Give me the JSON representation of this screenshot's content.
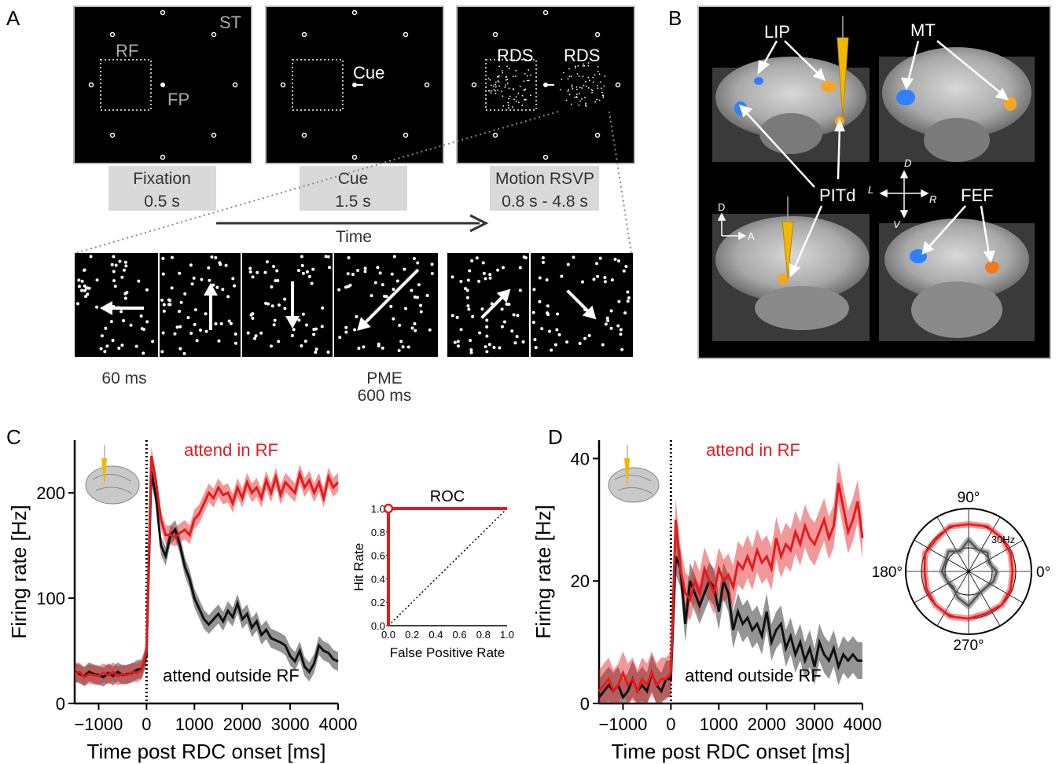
{
  "panel_letters": {
    "a": "A",
    "b": "B",
    "c": "C",
    "d": "D"
  },
  "panel_a": {
    "screen_labels": {
      "st": "ST",
      "rf": "RF",
      "fp": "FP",
      "cue": "Cue",
      "rds_left": "RDS",
      "rds_right": "RDS"
    },
    "stages": [
      {
        "name": "Fixation",
        "duration": "0.5 s"
      },
      {
        "name": "Cue",
        "duration": "1.5 s"
      },
      {
        "name": "Motion RSVP",
        "duration": "0.8 s - 4.8 s"
      }
    ],
    "time_label": "Time",
    "frame_duration": "60 ms",
    "pme_label": "PME",
    "pme_duration": "600 ms",
    "motion_directions_deg": [
      180,
      90,
      270,
      225,
      45,
      315
    ]
  },
  "panel_b": {
    "labels": {
      "lip": "LIP",
      "mt": "MT",
      "pitd": "PITd",
      "fef": "FEF"
    },
    "orient_coronal": {
      "d": "D",
      "v": "V",
      "l": "L",
      "r": "R"
    },
    "orient_sagittal": {
      "d": "D",
      "a": "A"
    }
  },
  "chart_data": [
    {
      "type": "line",
      "panel": "C",
      "title": "",
      "xlabel": "Time post RDC onset [ms]",
      "ylabel": "Firing rate [Hz]",
      "xlim": [
        -1500,
        4000
      ],
      "ylim": [
        0,
        250
      ],
      "xticks": [
        -1000,
        0,
        1000,
        2000,
        3000,
        4000
      ],
      "xtick_labels": [
        "−1000",
        "0",
        "1000",
        "2000",
        "3000",
        "4000"
      ],
      "yticks": [
        0,
        100,
        200
      ],
      "ytick_labels": [
        "0",
        "100",
        "200"
      ],
      "annotations": {
        "red": "attend in RF",
        "black": "attend outside RF"
      },
      "x": [
        -1500,
        -1400,
        -1300,
        -1200,
        -1100,
        -1000,
        -900,
        -800,
        -700,
        -600,
        -500,
        -400,
        -300,
        -200,
        -100,
        0,
        100,
        200,
        300,
        400,
        500,
        600,
        700,
        800,
        900,
        1000,
        1100,
        1200,
        1300,
        1400,
        1500,
        1600,
        1700,
        1800,
        1900,
        2000,
        2100,
        2200,
        2300,
        2400,
        2500,
        2600,
        2700,
        2800,
        2900,
        3000,
        3100,
        3200,
        3300,
        3400,
        3500,
        3600,
        3700,
        3800,
        3900,
        4000
      ],
      "series": [
        {
          "color": "#e41a1c",
          "band": 9,
          "values": [
            28,
            30,
            25,
            28,
            27,
            26,
            29,
            27,
            30,
            26,
            28,
            27,
            30,
            29,
            32,
            50,
            235,
            210,
            175,
            160,
            160,
            158,
            162,
            165,
            160,
            175,
            180,
            190,
            200,
            195,
            205,
            198,
            200,
            190,
            205,
            195,
            210,
            200,
            205,
            195,
            212,
            200,
            215,
            198,
            210,
            205,
            200,
            218,
            205,
            212,
            200,
            210,
            195,
            215,
            205,
            210
          ]
        },
        {
          "color": "#111111",
          "band": 9,
          "values": [
            30,
            28,
            26,
            30,
            28,
            27,
            25,
            29,
            26,
            30,
            27,
            28,
            29,
            32,
            33,
            45,
            220,
            195,
            150,
            140,
            160,
            165,
            150,
            130,
            118,
            100,
            90,
            80,
            75,
            80,
            85,
            78,
            88,
            82,
            95,
            80,
            85,
            72,
            78,
            65,
            70,
            62,
            60,
            58,
            55,
            45,
            40,
            50,
            35,
            30,
            38,
            55,
            50,
            48,
            42,
            40
          ]
        }
      ]
    },
    {
      "type": "line",
      "panel": "C-inset",
      "title": "ROC",
      "xlabel": "False Positive Rate",
      "ylabel": "Hit Rate",
      "xlim": [
        0,
        1
      ],
      "ylim": [
        0,
        1
      ],
      "ticks": [
        "0.0",
        "0.2",
        "0.4",
        "0.6",
        "0.8",
        "1.0"
      ],
      "series": [
        {
          "color": "#e41a1c",
          "x": [
            0,
            0,
            1
          ],
          "values": [
            0,
            1,
            1
          ]
        },
        {
          "color": "#000000",
          "dashed": true,
          "x": [
            0,
            1
          ],
          "values": [
            0,
            1
          ]
        }
      ]
    },
    {
      "type": "line",
      "panel": "D",
      "title": "",
      "xlabel": "Time post RDC onset [ms]",
      "ylabel": "Firing rate [Hz]",
      "xlim": [
        -1500,
        4000
      ],
      "ylim": [
        0,
        43
      ],
      "xticks": [
        -1000,
        0,
        1000,
        2000,
        3000,
        4000
      ],
      "xtick_labels": [
        "−1000",
        "0",
        "1000",
        "2000",
        "3000",
        "4000"
      ],
      "yticks": [
        0,
        20,
        40
      ],
      "ytick_labels": [
        "0",
        "20",
        "40"
      ],
      "annotations": {
        "red": "attend in RF",
        "black": "attend outside RF"
      },
      "x": [
        -1500,
        -1400,
        -1300,
        -1200,
        -1100,
        -1000,
        -900,
        -800,
        -700,
        -600,
        -500,
        -400,
        -300,
        -200,
        -100,
        0,
        100,
        200,
        300,
        400,
        500,
        600,
        700,
        800,
        900,
        1000,
        1100,
        1200,
        1300,
        1400,
        1500,
        1600,
        1700,
        1800,
        1900,
        2000,
        2100,
        2200,
        2300,
        2400,
        2500,
        2600,
        2700,
        2800,
        2900,
        3000,
        3100,
        3200,
        3300,
        3400,
        3500,
        3600,
        3700,
        3800,
        3900,
        4000
      ],
      "series": [
        {
          "color": "#e41a1c",
          "band": 3.5,
          "values": [
            2,
            3,
            4,
            2,
            3,
            5,
            3,
            4,
            2,
            4,
            3,
            5,
            3,
            4,
            4,
            5,
            30,
            22,
            18,
            17,
            20,
            18,
            22,
            20,
            18,
            22,
            20,
            21,
            19,
            23,
            22,
            24,
            22,
            25,
            23,
            24,
            22,
            27,
            24,
            26,
            25,
            28,
            26,
            29,
            27,
            26,
            28,
            30,
            27,
            29,
            36,
            32,
            28,
            30,
            33,
            27
          ]
        },
        {
          "color": "#111111",
          "band": 3,
          "values": [
            1,
            2,
            3,
            2,
            3,
            1,
            2,
            4,
            2,
            3,
            2,
            5,
            3,
            2,
            4,
            4,
            24,
            22,
            13,
            20,
            18,
            16,
            18,
            20,
            19,
            15,
            20,
            18,
            12,
            15,
            13,
            14,
            12,
            13,
            11,
            15,
            10,
            12,
            13,
            9,
            11,
            8,
            10,
            7,
            9,
            6,
            10,
            8,
            7,
            9,
            6,
            8,
            7,
            8,
            7,
            7
          ]
        }
      ]
    },
    {
      "type": "polar",
      "panel": "D-inset",
      "angle_labels": [
        "90°",
        "180°",
        "0°",
        "270°"
      ],
      "radius_label": "30Hz",
      "angles_deg": [
        0,
        22.5,
        45,
        67.5,
        90,
        112.5,
        135,
        157.5,
        180,
        202.5,
        225,
        247.5,
        270,
        292.5,
        315,
        337.5
      ],
      "series": [
        {
          "color": "#e41a1c",
          "values": [
            28,
            29,
            30,
            31,
            30,
            31,
            29,
            30,
            28,
            29,
            30,
            31,
            30,
            29,
            30,
            29
          ]
        },
        {
          "color": "#555555",
          "values": [
            18,
            14,
            17,
            15,
            20,
            14,
            18,
            16,
            17,
            15,
            14,
            18,
            22,
            16,
            15,
            17
          ]
        }
      ]
    }
  ]
}
